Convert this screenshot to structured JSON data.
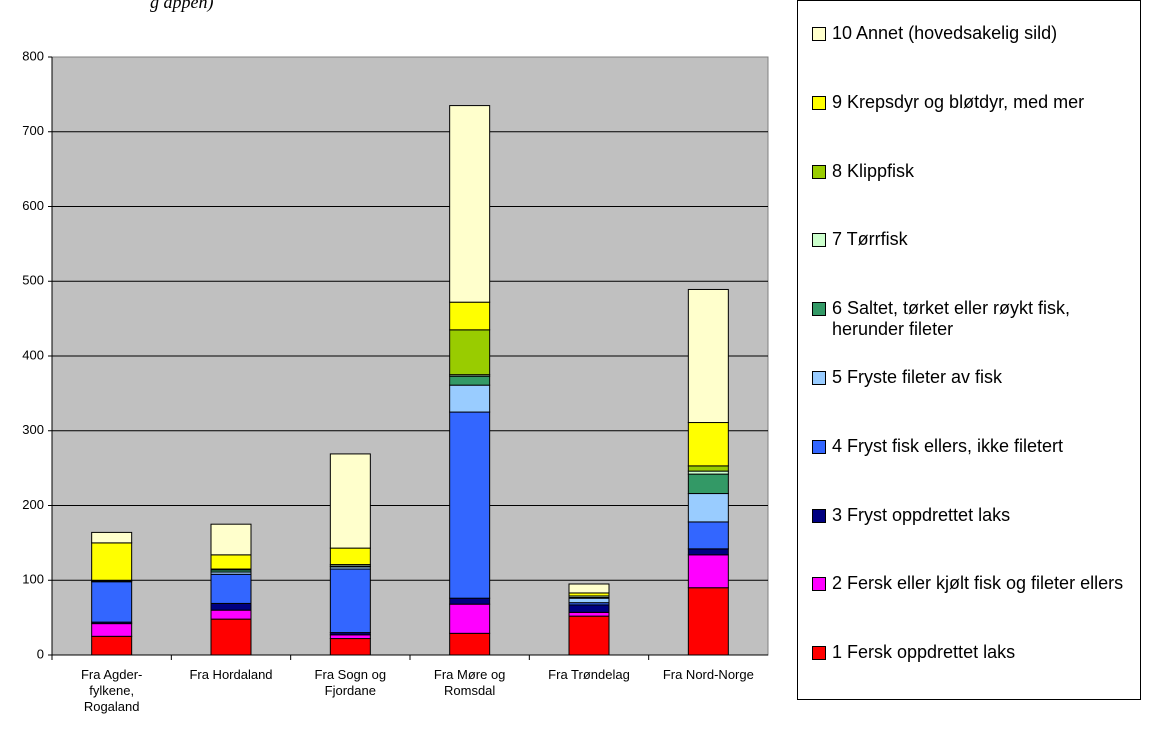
{
  "chart_data": {
    "type": "stacked_bar",
    "note": "g appen)",
    "categories": [
      "Fra Agder-fylkene, Rogaland",
      "Fra Hordaland",
      "Fra Sogn og Fjordane",
      "Fra Møre og Romsdal",
      "Fra Trøndelag",
      "Fra Nord-Norge"
    ],
    "series": [
      {
        "name": "1 Fersk oppdrettet laks",
        "color": "#ff0000",
        "values": [
          25,
          48,
          22,
          29,
          52,
          90
        ]
      },
      {
        "name": "2 Fersk eller kjølt fisk og fileter ellers",
        "color": "#ff00ff",
        "values": [
          17,
          12,
          5,
          39,
          5,
          44
        ]
      },
      {
        "name": "3 Fryst oppdrettet laks",
        "color": "#000080",
        "values": [
          2,
          9,
          3,
          8,
          10,
          8
        ]
      },
      {
        "name": "4 Fryst fisk ellers, ikke filetert",
        "color": "#3366ff",
        "values": [
          54,
          39,
          85,
          249,
          3,
          36
        ]
      },
      {
        "name": "5 Fryste fileter av fisk",
        "color": "#99ccff",
        "values": [
          1,
          3,
          3,
          36,
          6,
          38
        ]
      },
      {
        "name": "6 Saltet, tørket eller røykt fisk, herunder fileter",
        "color": "#339966",
        "values": [
          1,
          3,
          1,
          12,
          1,
          26
        ]
      },
      {
        "name": "7 Tørrfisk",
        "color": "#ccffcc",
        "values": [
          0,
          1,
          2,
          2,
          2,
          4
        ]
      },
      {
        "name": "8 Klippfisk",
        "color": "#99cc00",
        "values": [
          0,
          0,
          0,
          60,
          0,
          7
        ]
      },
      {
        "name": "9 Krepsdyr og bløtdyr, med mer",
        "color": "#ffff00",
        "values": [
          50,
          19,
          22,
          37,
          4,
          58
        ]
      },
      {
        "name": "10 Annet (hovedsakelig sild)",
        "color": "#ffffcc",
        "values": [
          14,
          41,
          126,
          263,
          12,
          178
        ]
      }
    ],
    "ylim": [
      0,
      800
    ],
    "yticks": [
      0,
      100,
      200,
      300,
      400,
      500,
      600,
      700,
      800
    ],
    "grid": true
  }
}
